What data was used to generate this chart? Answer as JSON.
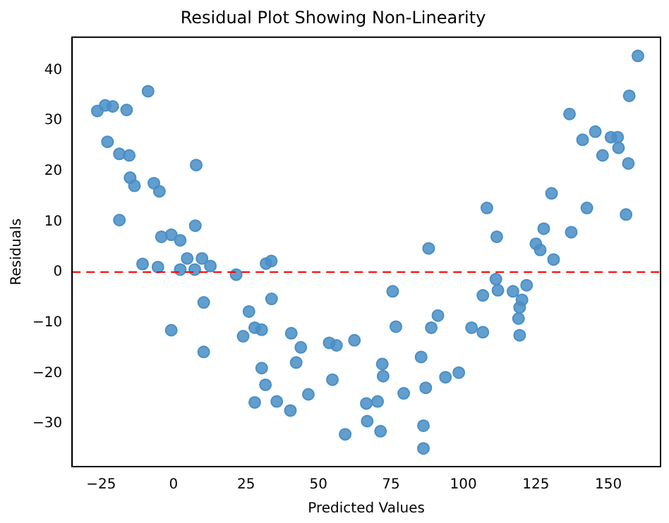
{
  "chart_data": {
    "type": "scatter",
    "title": "Residual Plot Showing Non-Linearity",
    "xlabel": "Predicted Values",
    "ylabel": "Residuals",
    "xlim": [
      -35,
      168
    ],
    "ylim": [
      -38.5,
      46.5
    ],
    "xticks": [
      -25,
      0,
      25,
      50,
      75,
      100,
      125,
      150
    ],
    "yticks": [
      -30,
      -20,
      -10,
      0,
      10,
      20,
      30,
      40
    ],
    "grid": false,
    "legend": false,
    "marker": "circle",
    "series": [
      {
        "color": "#4a8fc6",
        "x": [
          -26.3,
          -23.6,
          -21.0,
          -16.2,
          -8.8,
          -22.8,
          -18.7,
          -15.3,
          -15.0,
          -13.5,
          -6.8,
          -4.9,
          7.8,
          -18.7,
          7.5,
          -4.2,
          -0.8,
          2.3,
          -10.7,
          -5.4,
          4.7,
          9.8,
          12.7,
          2.3,
          7.3,
          21.6,
          31.9,
          33.7,
          10.4,
          -0.8,
          10.4,
          26.0,
          24.0,
          28.0,
          30.4,
          30.4,
          31.7,
          28.0,
          33.8,
          88.0,
          40.6,
          43.9,
          42.3,
          35.6,
          40.3,
          46.5,
          53.7,
          56.2,
          62.4,
          54.8,
          59.2,
          66.5,
          66.8,
          70.4,
          71.4,
          72.0,
          72.3,
          75.6,
          76.7,
          79.4,
          85.4,
          87.0,
          86.2,
          86.2,
          88.9,
          91.2,
          93.8,
          98.4,
          102.8,
          106.7,
          106.7,
          160.2,
          157.2,
          136.6,
          145.5,
          141.1,
          150.9,
          153.2,
          153.5,
          148.0,
          156.9,
          130.4,
          108.1,
          142.6,
          156.1,
          111.5,
          127.7,
          137.2,
          125.0,
          126.5,
          131.1,
          111.2,
          111.9,
          117.1,
          121.8,
          120.2,
          119.4,
          119.0,
          119.4
        ],
        "values": [
          31.9,
          33.0,
          32.8,
          32.1,
          35.8,
          25.8,
          23.4,
          23.1,
          18.7,
          17.1,
          17.6,
          16.0,
          21.2,
          10.3,
          9.2,
          7.0,
          7.4,
          6.3,
          1.6,
          1.0,
          2.7,
          2.7,
          1.2,
          0.5,
          0.5,
          -0.5,
          1.7,
          2.2,
          -6.0,
          -11.5,
          -15.8,
          -7.8,
          -12.7,
          -11.0,
          -11.4,
          -19.0,
          -22.3,
          -25.8,
          -5.3,
          4.7,
          -12.1,
          -14.9,
          -17.9,
          -25.6,
          -27.4,
          -24.2,
          -14.0,
          -14.5,
          -13.5,
          -21.3,
          -32.1,
          -26.0,
          -29.5,
          -25.6,
          -31.5,
          -18.2,
          -20.6,
          -3.8,
          -10.8,
          -24.0,
          -16.8,
          -22.9,
          -30.4,
          -34.9,
          -11.0,
          -8.6,
          -20.8,
          -19.9,
          -11.0,
          -4.6,
          -11.9,
          42.8,
          34.9,
          31.3,
          27.8,
          26.2,
          26.7,
          26.7,
          24.6,
          23.1,
          21.5,
          15.6,
          12.7,
          12.7,
          11.4,
          7.0,
          8.6,
          7.9,
          5.6,
          4.4,
          2.5,
          -1.4,
          -3.6,
          -3.8,
          -2.6,
          -5.5,
          -7.0,
          -9.2,
          -12.5
        ]
      }
    ],
    "ref_lines": [
      {
        "axis": "y",
        "value": 0,
        "color": "#ff0000",
        "line_style": "dashed"
      }
    ]
  }
}
